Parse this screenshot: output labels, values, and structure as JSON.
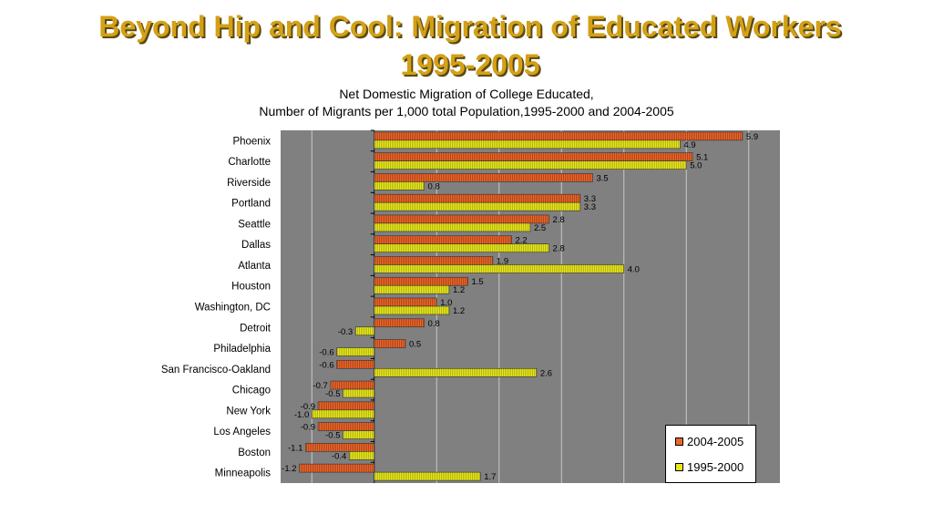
{
  "title_line1": "Beyond Hip and Cool: Migration of Educated Workers",
  "title_line2": "1995-2005",
  "subtitle_line1": "Net Domestic Migration of College Educated,",
  "subtitle_line2": "Number of Migrants per 1,000 total Population,1995-2000 and 2004-2005",
  "colors": {
    "series_2004": "#e8692a",
    "series_1995": "#e8e81a",
    "plot_bg": "#808080"
  },
  "chart_data": {
    "type": "bar",
    "orientation": "horizontal",
    "categories": [
      "Phoenix",
      "Charlotte",
      "Riverside",
      "Portland",
      "Seattle",
      "Dallas",
      "Atlanta",
      "Houston",
      "Washington, DC",
      "Detroit",
      "Philadelphia",
      "San Francisco-Oakland",
      "Chicago",
      "New York",
      "Los Angeles",
      "Boston",
      "Minneapolis"
    ],
    "series": [
      {
        "name": "2004-2005",
        "values": [
          5.9,
          5.1,
          3.5,
          3.3,
          2.8,
          2.2,
          1.9,
          1.5,
          1.0,
          0.8,
          0.5,
          -0.6,
          -0.7,
          -0.9,
          -0.9,
          -1.1,
          -1.2
        ],
        "labels": [
          "5.9",
          "5.1",
          "3.5",
          "3.3",
          "2.8",
          "2.2",
          "1.9",
          "1.5",
          "1.0",
          "0.8",
          "0.5",
          "-0.6",
          "-0.7",
          "-0.9",
          "-0.9",
          "-1.1",
          "-1.2"
        ]
      },
      {
        "name": "1995-2000",
        "values": [
          4.9,
          5.0,
          0.8,
          3.3,
          2.5,
          2.8,
          4.0,
          1.2,
          1.2,
          -0.3,
          -0.6,
          2.6,
          -0.5,
          -1.0,
          -0.5,
          -0.4,
          1.7
        ],
        "labels": [
          "4.9",
          "5.0",
          "0.8",
          "3.3",
          "2.5",
          "2.8",
          "4.0",
          "1.2",
          "1.2",
          "-0.3",
          "-0.6",
          "2.6",
          "-0.5",
          "-1.0",
          "-0.5",
          "-0.4",
          "1.7"
        ]
      }
    ],
    "xlim": [
      -1.5,
      6.5
    ],
    "grid": true,
    "legend_position": "bottom-right"
  }
}
